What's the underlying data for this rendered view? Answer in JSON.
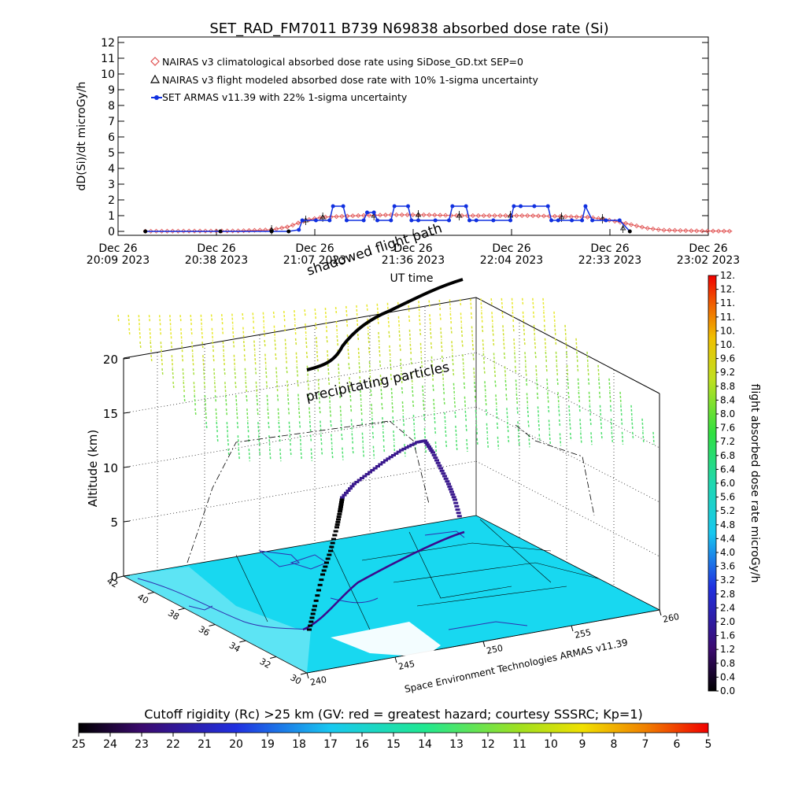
{
  "title": "SET_RAD_FM7011  B739 N69838 absorbed dose rate (Si)",
  "top_chart": {
    "ylabel": "dD(Si)/dt microGy/h",
    "xlabel": "UT time",
    "y_ticks": [
      "0",
      "1",
      "2",
      "3",
      "4",
      "5",
      "6",
      "7",
      "8",
      "9",
      "10",
      "11",
      "12"
    ],
    "ylim": [
      0,
      12
    ],
    "x_ticks": [
      {
        "line1": "Dec 26",
        "line2": "20:09 2023"
      },
      {
        "line1": "Dec 26",
        "line2": "20:38 2023"
      },
      {
        "line1": "Dec 26",
        "line2": "21:07 2023"
      },
      {
        "line1": "Dec 26",
        "line2": "21:36 2023"
      },
      {
        "line1": "Dec 26",
        "line2": "22:04 2023"
      },
      {
        "line1": "Dec 26",
        "line2": "22:33 2023"
      },
      {
        "line1": "Dec 26",
        "line2": "23:02 2023"
      }
    ],
    "legend": [
      {
        "symbol": "diamond",
        "color": "#e05050",
        "text": "NAIRAS v3 climatological absorbed dose rate using SiDose_GD.txt SEP=0"
      },
      {
        "symbol": "triangle",
        "color": "#000000",
        "text": "NAIRAS v3 flight modeled absorbed dose rate with 10% 1-sigma uncertainty"
      },
      {
        "symbol": "dot",
        "color": "#1030e0",
        "text": "SET ARMAS v11.39 with 22% 1-sigma uncertainty"
      }
    ]
  },
  "chart_data": [
    {
      "type": "line",
      "title": "SET_RAD_FM7011  B739 N69838 absorbed dose rate (Si)",
      "xlabel": "UT time",
      "ylabel": "dD(Si)/dt microGy/h",
      "ylim": [
        0,
        12
      ],
      "x_range_minutes_from_20_09": [
        0,
        173
      ],
      "x_unit": "minutes after Dec 26 20:09 2023",
      "series": [
        {
          "name": "NAIRAS v3 climatological absorbed dose rate using SiDose_GD.txt SEP=0",
          "x": [
            8,
            20,
            35,
            45,
            50,
            53,
            56,
            60,
            70,
            80,
            90,
            100,
            110,
            120,
            130,
            138,
            143,
            148,
            152,
            155,
            160,
            170,
            180
          ],
          "values": [
            0.01,
            0.02,
            0.03,
            0.1,
            0.3,
            0.55,
            0.75,
            0.9,
            1.0,
            1.05,
            1.05,
            1.0,
            1.0,
            1.0,
            0.95,
            0.9,
            0.75,
            0.55,
            0.35,
            0.2,
            0.08,
            0.03,
            0.01
          ]
        },
        {
          "name": "NAIRAS v3 flight modeled absorbed dose rate with 10% 1-sigma uncertainty",
          "x": [
            45,
            55,
            60,
            75,
            88,
            100,
            115,
            130,
            142,
            148
          ],
          "values": [
            0.1,
            0.7,
            0.9,
            1.0,
            1.05,
            1.0,
            1.0,
            0.9,
            0.8,
            0.2
          ]
        },
        {
          "name": "SET ARMAS v11.39 with 22% 1-sigma uncertainty",
          "x": [
            8,
            30,
            45,
            50,
            53,
            54,
            58,
            62,
            63,
            66,
            67,
            72,
            73,
            75,
            76,
            80,
            81,
            85,
            86,
            88,
            93,
            97,
            98,
            102,
            103,
            105,
            110,
            115,
            116,
            118,
            122,
            126,
            127,
            129,
            133,
            136,
            137,
            139,
            143,
            147,
            150
          ],
          "values": [
            0,
            0,
            0,
            0,
            0.1,
            0.7,
            0.7,
            0.7,
            1.6,
            1.6,
            0.7,
            0.7,
            1.2,
            1.2,
            0.7,
            0.7,
            1.6,
            1.6,
            0.7,
            0.7,
            0.7,
            0.7,
            1.6,
            1.6,
            0.7,
            0.7,
            0.7,
            0.7,
            1.6,
            1.6,
            1.6,
            1.6,
            0.7,
            0.7,
            0.7,
            0.7,
            1.6,
            0.7,
            0.7,
            0.7,
            0
          ]
        }
      ]
    }
  ],
  "globe": {
    "annotations": {
      "shadowed_flight_path": "shadowed flight path",
      "precipitating_particles": "precipitating particles"
    },
    "zlabel": "Altitude (km)",
    "z_ticks": [
      "0",
      "5",
      "10",
      "15",
      "20"
    ],
    "lat_ticks": [
      "42",
      "40",
      "38",
      "36",
      "34",
      "32",
      "30"
    ],
    "lon_ticks": [
      "240",
      "245",
      "250",
      "255",
      "260"
    ],
    "credit": "Space Environment Technologies ARMAS v11.39"
  },
  "right_colorbar": {
    "label": "flight absorbed dose rate microGy/h",
    "ticks": [
      "0.0",
      "0.4",
      "0.8",
      "1.2",
      "1.6",
      "2.0",
      "2.4",
      "2.8",
      "3.2",
      "3.6",
      "4.0",
      "4.4",
      "4.8",
      "5.2",
      "5.6",
      "6.0",
      "6.4",
      "6.8",
      "7.2",
      "7.6",
      "8.0",
      "8.4",
      "8.8",
      "9.2",
      "9.6",
      "10.",
      "10.",
      "11.",
      "11.",
      "12.",
      "12."
    ]
  },
  "bottom_colorbar": {
    "label": "Cutoff rigidity (Rc) >25 km (GV: red = greatest hazard; courtesy SSSRC; Kp=1)",
    "ticks": [
      "25",
      "24",
      "23",
      "22",
      "21",
      "20",
      "19",
      "18",
      "17",
      "16",
      "15",
      "14",
      "13",
      "12",
      "11",
      "10",
      "9",
      "8",
      "7",
      "6",
      "5"
    ]
  },
  "colors": {
    "nairas_clim": "#e05050",
    "armas": "#1030e0",
    "map_fill": "#18d8f0",
    "map_outline": "#3030b0"
  }
}
